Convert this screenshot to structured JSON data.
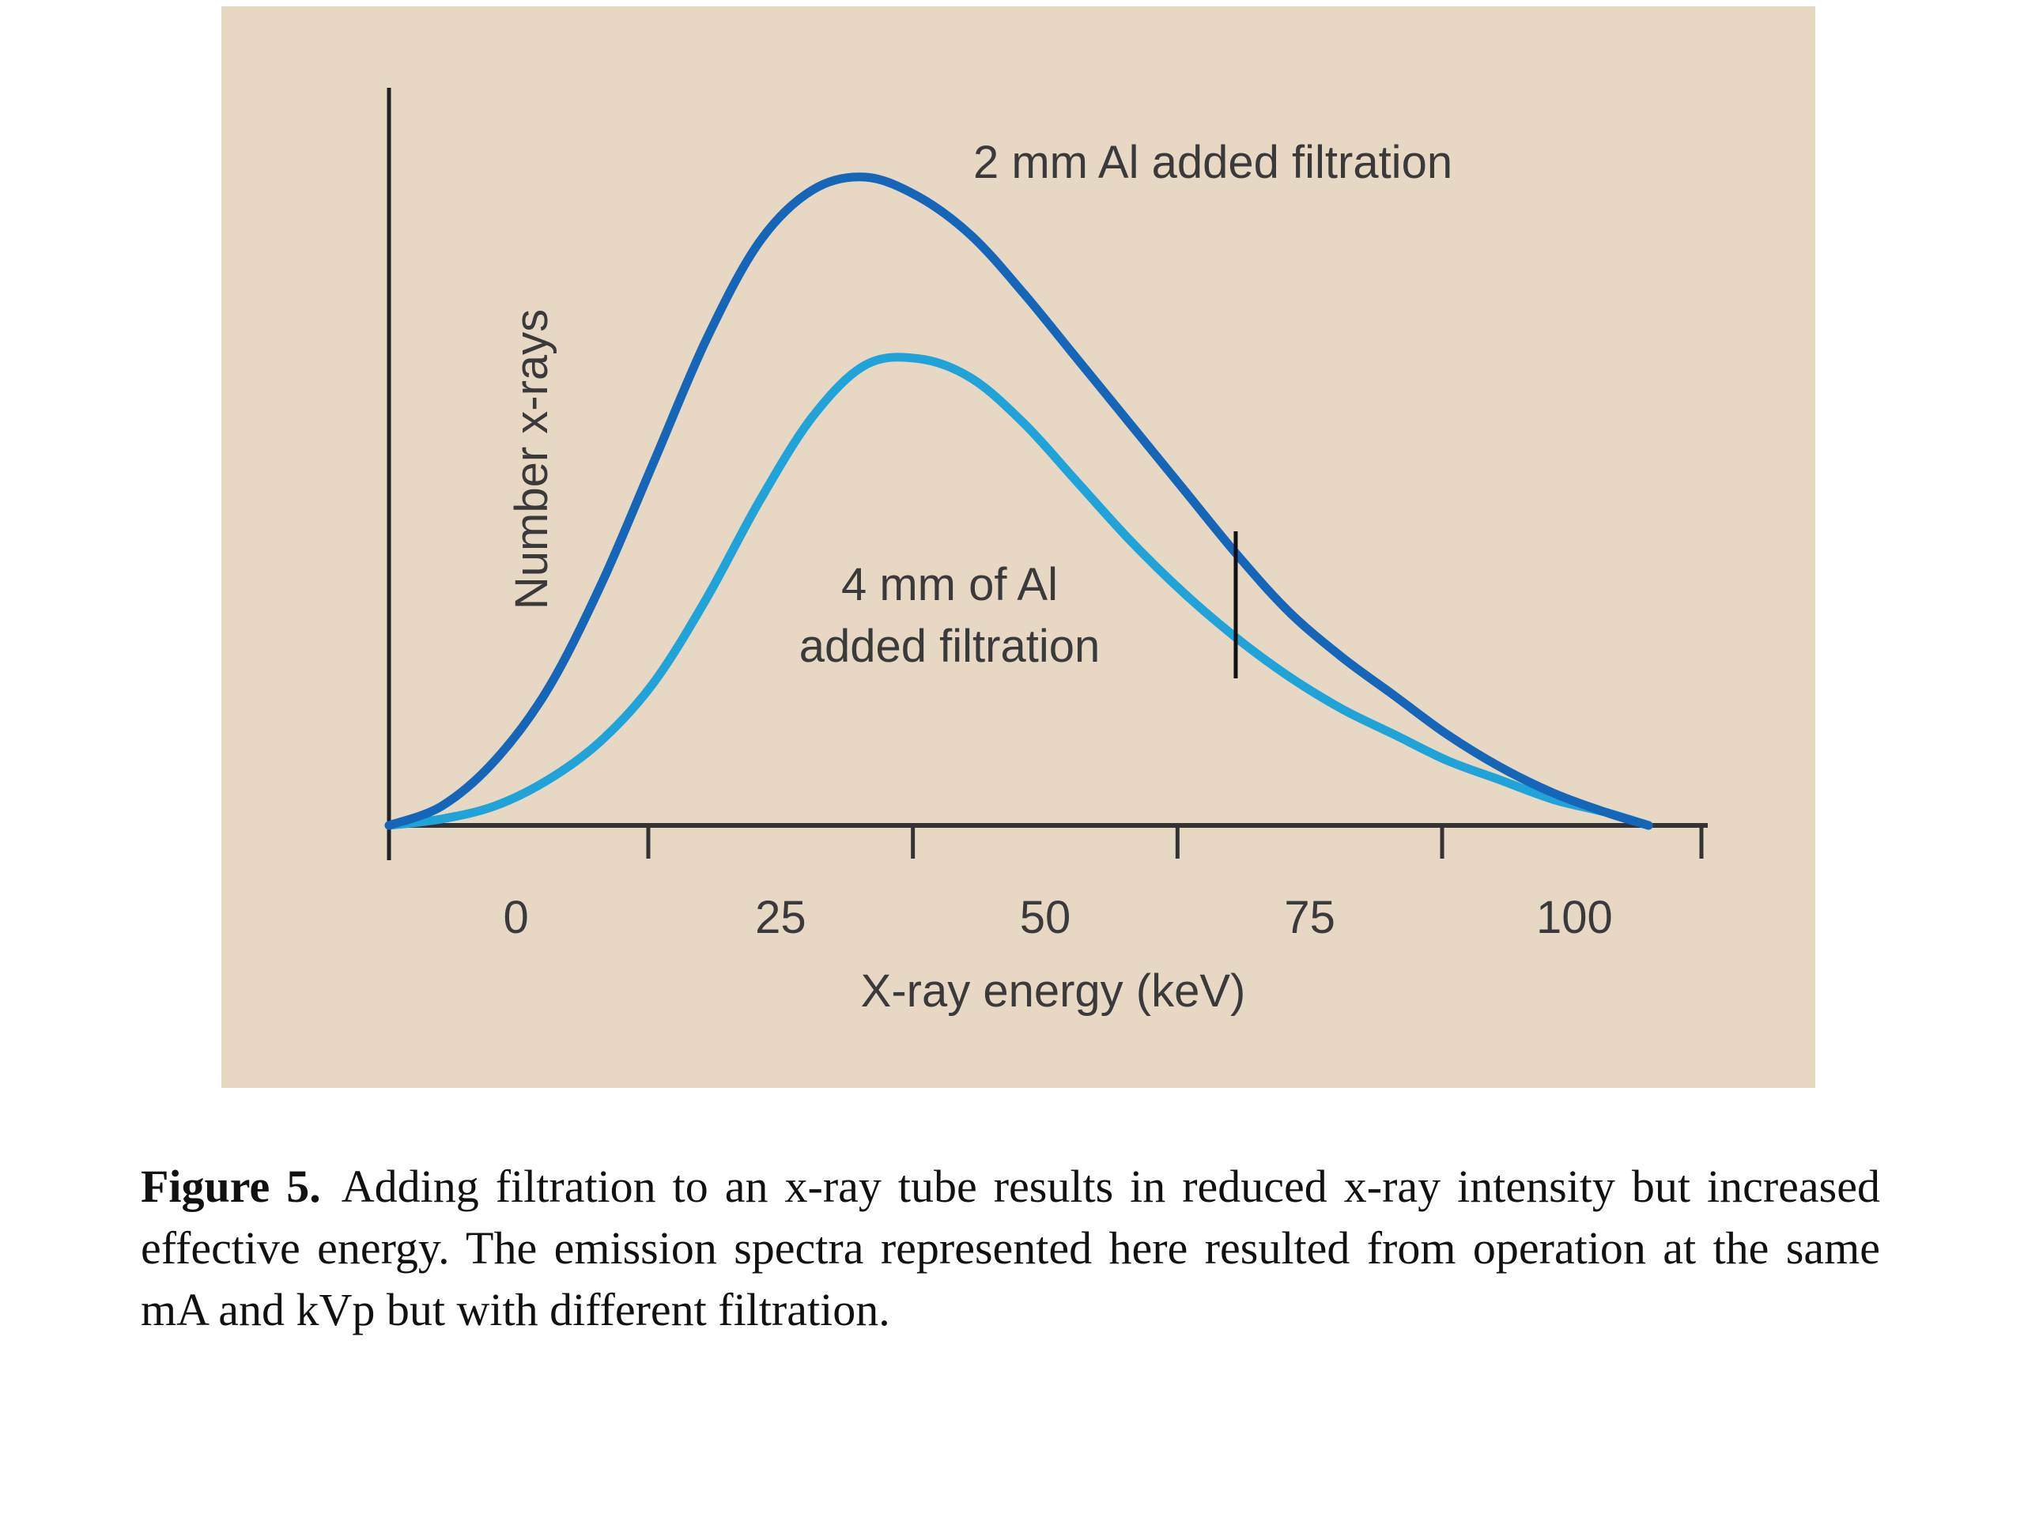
{
  "chart_data": {
    "type": "line",
    "xlabel": "X-ray energy (keV)",
    "ylabel": "Number x-rays",
    "x_ticks": [
      0,
      25,
      50,
      75,
      100
    ],
    "xlim": [
      -12,
      112
    ],
    "ylim": [
      0,
      1
    ],
    "series": [
      {
        "name": "2 mm Al added filtration",
        "color": "#1565b8",
        "x": [
          -12,
          -7,
          -2,
          3,
          8,
          13,
          18,
          23,
          28,
          33,
          38,
          43,
          48,
          53,
          58,
          63,
          68,
          73,
          78,
          83,
          88,
          93,
          98,
          103,
          107
        ],
        "y": [
          0.0,
          0.03,
          0.1,
          0.21,
          0.37,
          0.56,
          0.75,
          0.9,
          0.98,
          1.0,
          0.97,
          0.91,
          0.82,
          0.72,
          0.62,
          0.52,
          0.42,
          0.33,
          0.26,
          0.2,
          0.14,
          0.09,
          0.05,
          0.02,
          0.0
        ]
      },
      {
        "name": "4 mm of Al added filtration",
        "color": "#1fa3d8",
        "x": [
          -12,
          -7,
          -2,
          3,
          8,
          13,
          18,
          23,
          28,
          33,
          38,
          43,
          48,
          53,
          58,
          63,
          68,
          73,
          78,
          83,
          88,
          93,
          98,
          103,
          107
        ],
        "y": [
          0.0,
          0.01,
          0.03,
          0.07,
          0.13,
          0.22,
          0.35,
          0.5,
          0.63,
          0.71,
          0.72,
          0.69,
          0.62,
          0.53,
          0.44,
          0.36,
          0.29,
          0.23,
          0.18,
          0.14,
          0.1,
          0.07,
          0.04,
          0.02,
          0.0
        ]
      }
    ],
    "marker_x": 68,
    "annotations": [
      "2 mm Al added filtration",
      "4 mm of Al",
      "added filtration"
    ]
  },
  "caption": {
    "label": "Figure 5.",
    "text": "Adding filtration to an x-ray tube results in reduced x-ray intensity but increased effective energy. The emission spectra represented here resulted from operation at the same mA and kVp but with different filtration."
  }
}
